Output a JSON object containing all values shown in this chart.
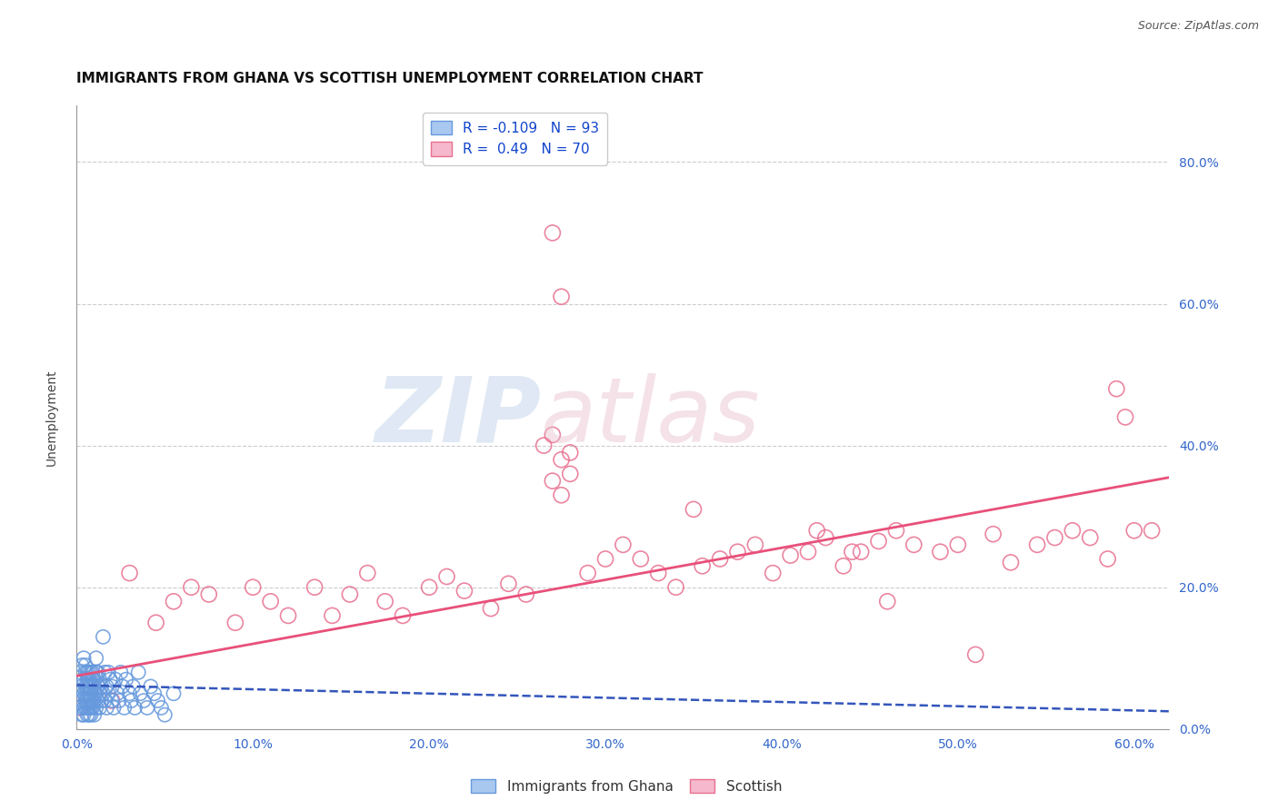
{
  "title": "IMMIGRANTS FROM GHANA VS SCOTTISH UNEMPLOYMENT CORRELATION CHART",
  "source": "Source: ZipAtlas.com",
  "ylabel": "Unemployment",
  "xlim": [
    0.0,
    0.62
  ],
  "ylim": [
    0.0,
    0.88
  ],
  "blue_R": -0.109,
  "blue_N": 93,
  "pink_R": 0.49,
  "pink_N": 70,
  "blue_color": "#a8c8f0",
  "pink_color": "#f5b8cc",
  "blue_edge_color": "#6699dd",
  "pink_edge_color": "#e87090",
  "blue_line_color": "#3355bb",
  "pink_line_color": "#e8507a",
  "background_color": "#ffffff",
  "grid_color": "#cccccc",
  "blue_scatter_x": [
    0.001,
    0.002,
    0.002,
    0.003,
    0.003,
    0.003,
    0.003,
    0.004,
    0.004,
    0.004,
    0.004,
    0.004,
    0.005,
    0.005,
    0.005,
    0.005,
    0.005,
    0.005,
    0.006,
    0.006,
    0.006,
    0.006,
    0.006,
    0.006,
    0.006,
    0.007,
    0.007,
    0.007,
    0.007,
    0.007,
    0.007,
    0.007,
    0.008,
    0.008,
    0.008,
    0.008,
    0.008,
    0.008,
    0.009,
    0.009,
    0.009,
    0.009,
    0.009,
    0.01,
    0.01,
    0.01,
    0.01,
    0.01,
    0.011,
    0.011,
    0.011,
    0.011,
    0.012,
    0.012,
    0.012,
    0.013,
    0.013,
    0.013,
    0.014,
    0.014,
    0.015,
    0.015,
    0.016,
    0.016,
    0.017,
    0.017,
    0.018,
    0.018,
    0.019,
    0.02,
    0.02,
    0.021,
    0.022,
    0.023,
    0.024,
    0.025,
    0.026,
    0.027,
    0.028,
    0.03,
    0.031,
    0.032,
    0.033,
    0.035,
    0.036,
    0.038,
    0.04,
    0.042,
    0.044,
    0.046,
    0.048,
    0.05,
    0.055
  ],
  "blue_scatter_y": [
    0.05,
    0.03,
    0.08,
    0.02,
    0.06,
    0.09,
    0.04,
    0.03,
    0.07,
    0.05,
    0.1,
    0.02,
    0.06,
    0.04,
    0.08,
    0.03,
    0.09,
    0.05,
    0.02,
    0.07,
    0.04,
    0.06,
    0.03,
    0.08,
    0.05,
    0.03,
    0.06,
    0.04,
    0.08,
    0.02,
    0.07,
    0.05,
    0.03,
    0.06,
    0.04,
    0.08,
    0.05,
    0.02,
    0.07,
    0.04,
    0.06,
    0.03,
    0.08,
    0.05,
    0.02,
    0.07,
    0.04,
    0.06,
    0.03,
    0.08,
    0.05,
    0.1,
    0.06,
    0.04,
    0.08,
    0.05,
    0.03,
    0.07,
    0.04,
    0.06,
    0.13,
    0.05,
    0.08,
    0.04,
    0.06,
    0.03,
    0.08,
    0.05,
    0.07,
    0.04,
    0.06,
    0.03,
    0.07,
    0.05,
    0.04,
    0.08,
    0.06,
    0.03,
    0.07,
    0.05,
    0.04,
    0.06,
    0.03,
    0.08,
    0.05,
    0.04,
    0.03,
    0.06,
    0.05,
    0.04,
    0.03,
    0.02,
    0.05
  ],
  "pink_scatter_x": [
    0.002,
    0.008,
    0.02,
    0.03,
    0.045,
    0.055,
    0.065,
    0.075,
    0.09,
    0.1,
    0.11,
    0.12,
    0.135,
    0.145,
    0.155,
    0.165,
    0.175,
    0.185,
    0.2,
    0.21,
    0.22,
    0.235,
    0.245,
    0.255,
    0.265,
    0.27,
    0.275,
    0.28,
    0.29,
    0.3,
    0.31,
    0.32,
    0.33,
    0.34,
    0.355,
    0.365,
    0.375,
    0.385,
    0.395,
    0.405,
    0.415,
    0.425,
    0.435,
    0.445,
    0.455,
    0.465,
    0.475,
    0.49,
    0.5,
    0.51,
    0.52,
    0.53,
    0.545,
    0.555,
    0.565,
    0.575,
    0.585,
    0.595,
    0.6,
    0.61,
    0.27,
    0.275,
    0.27,
    0.28,
    0.275,
    0.35,
    0.42,
    0.44,
    0.46,
    0.59
  ],
  "pink_scatter_y": [
    0.03,
    0.06,
    0.04,
    0.22,
    0.15,
    0.18,
    0.2,
    0.19,
    0.15,
    0.2,
    0.18,
    0.16,
    0.2,
    0.16,
    0.19,
    0.22,
    0.18,
    0.16,
    0.2,
    0.215,
    0.195,
    0.17,
    0.205,
    0.19,
    0.4,
    0.415,
    0.38,
    0.39,
    0.22,
    0.24,
    0.26,
    0.24,
    0.22,
    0.2,
    0.23,
    0.24,
    0.25,
    0.26,
    0.22,
    0.245,
    0.25,
    0.27,
    0.23,
    0.25,
    0.265,
    0.28,
    0.26,
    0.25,
    0.26,
    0.105,
    0.275,
    0.235,
    0.26,
    0.27,
    0.28,
    0.27,
    0.24,
    0.44,
    0.28,
    0.28,
    0.7,
    0.61,
    0.35,
    0.36,
    0.33,
    0.31,
    0.28,
    0.25,
    0.18,
    0.48
  ],
  "pink_trend_x0": 0.0,
  "pink_trend_y0": 0.075,
  "pink_trend_x1": 0.62,
  "pink_trend_y1": 0.355,
  "blue_trend_x0": 0.0,
  "blue_trend_y0": 0.062,
  "blue_trend_x1": 0.62,
  "blue_trend_y1": 0.025
}
